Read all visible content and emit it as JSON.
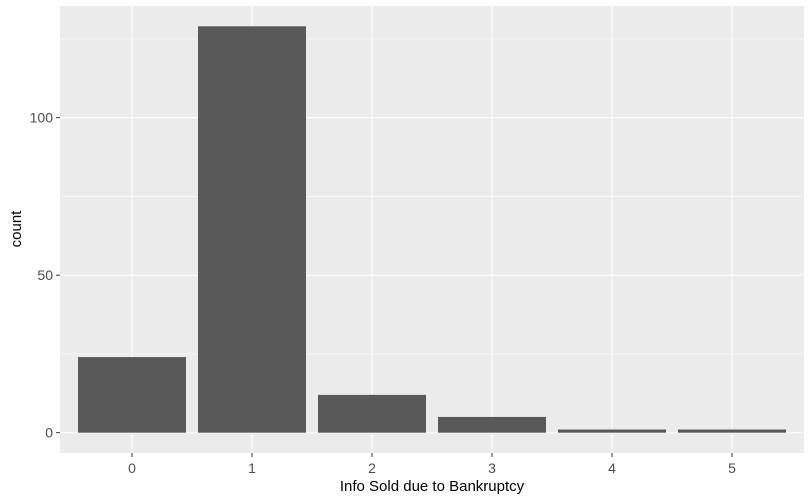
{
  "chart_data": {
    "type": "bar",
    "categories": [
      "0",
      "1",
      "2",
      "3",
      "4",
      "5"
    ],
    "values": [
      24,
      129,
      12,
      5,
      1,
      1
    ],
    "xlabel": "Info Sold due to Bankruptcy",
    "ylabel": "count",
    "ylim": [
      -6.45,
      135.45
    ],
    "yticks": [
      0,
      50,
      100
    ],
    "yticklabels": [
      "0",
      "50",
      "100"
    ],
    "grid": true,
    "colors": {
      "panel": "#ebebeb",
      "grid_major": "#ffffff",
      "bar": "#595959",
      "tick_text": "#4d4d4d",
      "tick_mark": "#333333"
    }
  }
}
